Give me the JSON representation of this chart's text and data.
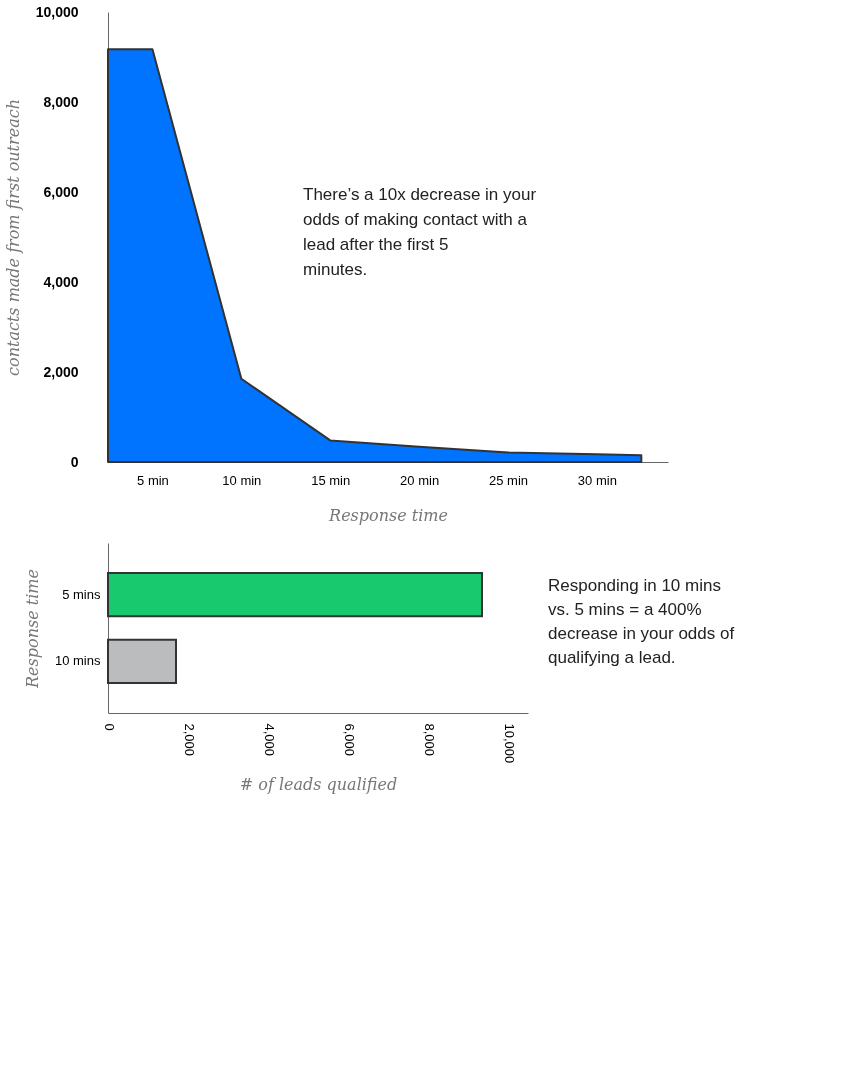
{
  "chart_data": [
    {
      "type": "area",
      "xlabel": "Response time",
      "ylabel": "contacts made from first outreach",
      "color": "#0073ff",
      "x": [
        2.5,
        5,
        10,
        15,
        20,
        25,
        30,
        32.5
      ],
      "values": [
        9170,
        9170,
        1850,
        480,
        340,
        210,
        170,
        150
      ],
      "xlim": [
        2.5,
        34
      ],
      "xticks": [
        {
          "value": 5,
          "label": "5 min"
        },
        {
          "value": 10,
          "label": "10 min"
        },
        {
          "value": 15,
          "label": "15 min"
        },
        {
          "value": 20,
          "label": "20 min"
        },
        {
          "value": 25,
          "label": "25 min"
        },
        {
          "value": 30,
          "label": "30 min"
        }
      ],
      "ylim": [
        0,
        10000
      ],
      "yticks": [
        0,
        {
          "value": 2000,
          "label": "2,000"
        },
        {
          "value": 4000,
          "label": "4,000"
        },
        {
          "value": 6000,
          "label": "6,000"
        },
        {
          "value": 8000,
          "label": "8,000"
        },
        {
          "value": 10000,
          "label": "10,000"
        }
      ],
      "annotations": [
        "There’s a 10x decrease in your odds of making contact with a lead after the first 5 minutes."
      ]
    },
    {
      "type": "bar",
      "orientation": "horizontal",
      "xlabel": "# of leads qualified",
      "ylabel": "Response time",
      "categories": [
        "5 mins",
        "10 mins"
      ],
      "values": [
        9350,
        1700
      ],
      "colors": [
        "#18c96e",
        "#bbbcbe"
      ],
      "xlim": [
        0,
        10500
      ],
      "xticks": [
        0,
        {
          "value": 2000,
          "label": "2,000"
        },
        {
          "value": 4000,
          "label": "4,000"
        },
        {
          "value": 6000,
          "label": "6,000"
        },
        {
          "value": 8000,
          "label": "8,000"
        },
        {
          "value": 10000,
          "label": "10,000"
        }
      ],
      "annotations": [
        "Responding in 10 mins vs. 5 mins = a 400% decrease in your odds of qualifying a lead."
      ]
    }
  ]
}
